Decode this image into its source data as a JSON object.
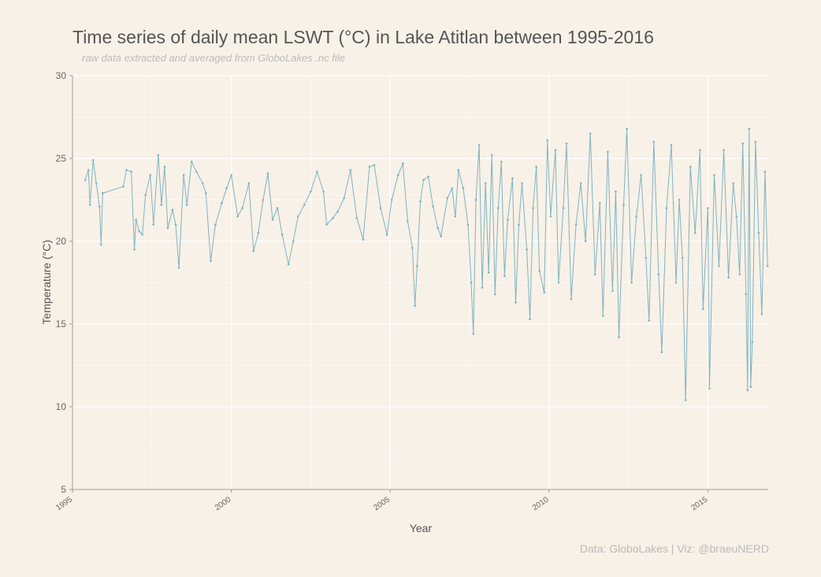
{
  "chart_data": {
    "type": "line",
    "title": "Time series of daily mean LSWT (°C) in Lake Atitlan between 1995-2016",
    "subtitle": "raw data extracted and averaged from GloboLakes .nc file",
    "caption": "Data: GloboLakes | Viz: @braeuNERD",
    "xlabel": "Year",
    "ylabel": "Temperature (°C)",
    "xlim": [
      1995,
      2016.9
    ],
    "ylim": [
      5,
      30
    ],
    "x_ticks": [
      "1995",
      "2000",
      "2005",
      "2010",
      "2015"
    ],
    "y_ticks": [
      "5",
      "10",
      "15",
      "20",
      "25",
      "30"
    ],
    "grid": true,
    "legend": "none",
    "series": [
      {
        "color": "#7fb3c1",
        "points": [
          [
            1995.4,
            23.7
          ],
          [
            1995.5,
            24.3
          ],
          [
            1995.55,
            22.2
          ],
          [
            1995.65,
            24.9
          ],
          [
            1995.75,
            23.5
          ],
          [
            1995.85,
            22.1
          ],
          [
            1995.9,
            19.8
          ],
          [
            1995.95,
            22.9
          ],
          [
            1996.6,
            23.3
          ],
          [
            1996.7,
            24.3
          ],
          [
            1996.85,
            24.2
          ],
          [
            1996.95,
            19.5
          ],
          [
            1997.0,
            21.3
          ],
          [
            1997.1,
            20.6
          ],
          [
            1997.2,
            20.4
          ],
          [
            1997.3,
            22.8
          ],
          [
            1997.45,
            24.0
          ],
          [
            1997.55,
            21.0
          ],
          [
            1997.7,
            25.2
          ],
          [
            1997.8,
            22.2
          ],
          [
            1997.9,
            24.5
          ],
          [
            1998.0,
            20.8
          ],
          [
            1998.15,
            21.9
          ],
          [
            1998.25,
            21.0
          ],
          [
            1998.35,
            18.4
          ],
          [
            1998.5,
            24.0
          ],
          [
            1998.6,
            22.2
          ],
          [
            1998.75,
            24.8
          ],
          [
            1998.9,
            24.2
          ],
          [
            1999.1,
            23.5
          ],
          [
            1999.2,
            22.9
          ],
          [
            1999.35,
            18.8
          ],
          [
            1999.5,
            21.0
          ],
          [
            1999.7,
            22.3
          ],
          [
            1999.85,
            23.2
          ],
          [
            2000.0,
            24.0
          ],
          [
            2000.2,
            21.5
          ],
          [
            2000.35,
            22.0
          ],
          [
            2000.55,
            23.5
          ],
          [
            2000.7,
            19.4
          ],
          [
            2000.85,
            20.5
          ],
          [
            2001.0,
            22.5
          ],
          [
            2001.15,
            24.1
          ],
          [
            2001.3,
            21.3
          ],
          [
            2001.45,
            22.0
          ],
          [
            2001.6,
            20.4
          ],
          [
            2001.8,
            18.6
          ],
          [
            2001.95,
            20.0
          ],
          [
            2002.1,
            21.5
          ],
          [
            2002.3,
            22.2
          ],
          [
            2002.5,
            23.0
          ],
          [
            2002.7,
            24.2
          ],
          [
            2002.9,
            23.0
          ],
          [
            2003.0,
            21.0
          ],
          [
            2003.2,
            21.4
          ],
          [
            2003.35,
            21.8
          ],
          [
            2003.55,
            22.6
          ],
          [
            2003.75,
            24.3
          ],
          [
            2003.95,
            21.4
          ],
          [
            2004.15,
            20.1
          ],
          [
            2004.35,
            24.5
          ],
          [
            2004.5,
            24.6
          ],
          [
            2004.7,
            22.0
          ],
          [
            2004.9,
            20.4
          ],
          [
            2005.05,
            22.5
          ],
          [
            2005.25,
            24.0
          ],
          [
            2005.4,
            24.7
          ],
          [
            2005.55,
            21.2
          ],
          [
            2005.7,
            19.6
          ],
          [
            2005.78,
            16.1
          ],
          [
            2005.85,
            18.5
          ],
          [
            2005.95,
            22.4
          ],
          [
            2006.05,
            23.7
          ],
          [
            2006.2,
            23.9
          ],
          [
            2006.35,
            22.1
          ],
          [
            2006.5,
            20.8
          ],
          [
            2006.6,
            20.3
          ],
          [
            2006.8,
            22.6
          ],
          [
            2006.95,
            23.2
          ],
          [
            2007.05,
            21.5
          ],
          [
            2007.15,
            24.3
          ],
          [
            2007.3,
            23.2
          ],
          [
            2007.45,
            21.0
          ],
          [
            2007.55,
            17.5
          ],
          [
            2007.62,
            14.4
          ],
          [
            2007.7,
            22.5
          ],
          [
            2007.8,
            25.8
          ],
          [
            2007.9,
            17.2
          ],
          [
            2008.0,
            23.5
          ],
          [
            2008.1,
            18.1
          ],
          [
            2008.2,
            25.2
          ],
          [
            2008.3,
            16.8
          ],
          [
            2008.4,
            22.0
          ],
          [
            2008.5,
            24.8
          ],
          [
            2008.6,
            17.9
          ],
          [
            2008.7,
            21.3
          ],
          [
            2008.85,
            23.8
          ],
          [
            2008.95,
            16.3
          ],
          [
            2009.05,
            21.0
          ],
          [
            2009.15,
            23.5
          ],
          [
            2009.3,
            19.5
          ],
          [
            2009.4,
            15.3
          ],
          [
            2009.5,
            22.0
          ],
          [
            2009.6,
            24.5
          ],
          [
            2009.7,
            18.2
          ],
          [
            2009.85,
            16.9
          ],
          [
            2009.95,
            26.1
          ],
          [
            2010.05,
            21.5
          ],
          [
            2010.2,
            25.5
          ],
          [
            2010.3,
            17.5
          ],
          [
            2010.45,
            22.0
          ],
          [
            2010.55,
            25.9
          ],
          [
            2010.7,
            16.5
          ],
          [
            2010.85,
            21.0
          ],
          [
            2011.0,
            23.5
          ],
          [
            2011.15,
            20.0
          ],
          [
            2011.3,
            26.5
          ],
          [
            2011.45,
            18.0
          ],
          [
            2011.6,
            22.3
          ],
          [
            2011.7,
            15.5
          ],
          [
            2011.85,
            25.4
          ],
          [
            2012.0,
            17.0
          ],
          [
            2012.1,
            23.0
          ],
          [
            2012.2,
            14.2
          ],
          [
            2012.35,
            22.2
          ],
          [
            2012.45,
            26.8
          ],
          [
            2012.6,
            17.5
          ],
          [
            2012.75,
            21.5
          ],
          [
            2012.9,
            24.0
          ],
          [
            2013.05,
            19.0
          ],
          [
            2013.15,
            15.2
          ],
          [
            2013.3,
            26.0
          ],
          [
            2013.45,
            18.0
          ],
          [
            2013.55,
            13.3
          ],
          [
            2013.7,
            22.0
          ],
          [
            2013.85,
            25.8
          ],
          [
            2014.0,
            17.5
          ],
          [
            2014.1,
            22.5
          ],
          [
            2014.2,
            19.0
          ],
          [
            2014.3,
            10.4
          ],
          [
            2014.45,
            24.5
          ],
          [
            2014.6,
            20.5
          ],
          [
            2014.75,
            25.5
          ],
          [
            2014.85,
            15.9
          ],
          [
            2015.0,
            22.0
          ],
          [
            2015.05,
            11.1
          ],
          [
            2015.2,
            24.0
          ],
          [
            2015.35,
            18.5
          ],
          [
            2015.5,
            25.5
          ],
          [
            2015.65,
            17.8
          ],
          [
            2015.8,
            23.5
          ],
          [
            2015.9,
            21.5
          ],
          [
            2016.0,
            18.0
          ],
          [
            2016.1,
            25.9
          ],
          [
            2016.2,
            16.8
          ],
          [
            2016.25,
            11.0
          ],
          [
            2016.3,
            26.8
          ],
          [
            2016.35,
            11.2
          ],
          [
            2016.4,
            13.9
          ],
          [
            2016.5,
            26.0
          ],
          [
            2016.6,
            20.5
          ],
          [
            2016.7,
            15.6
          ],
          [
            2016.8,
            24.2
          ],
          [
            2016.88,
            18.5
          ]
        ]
      }
    ]
  }
}
